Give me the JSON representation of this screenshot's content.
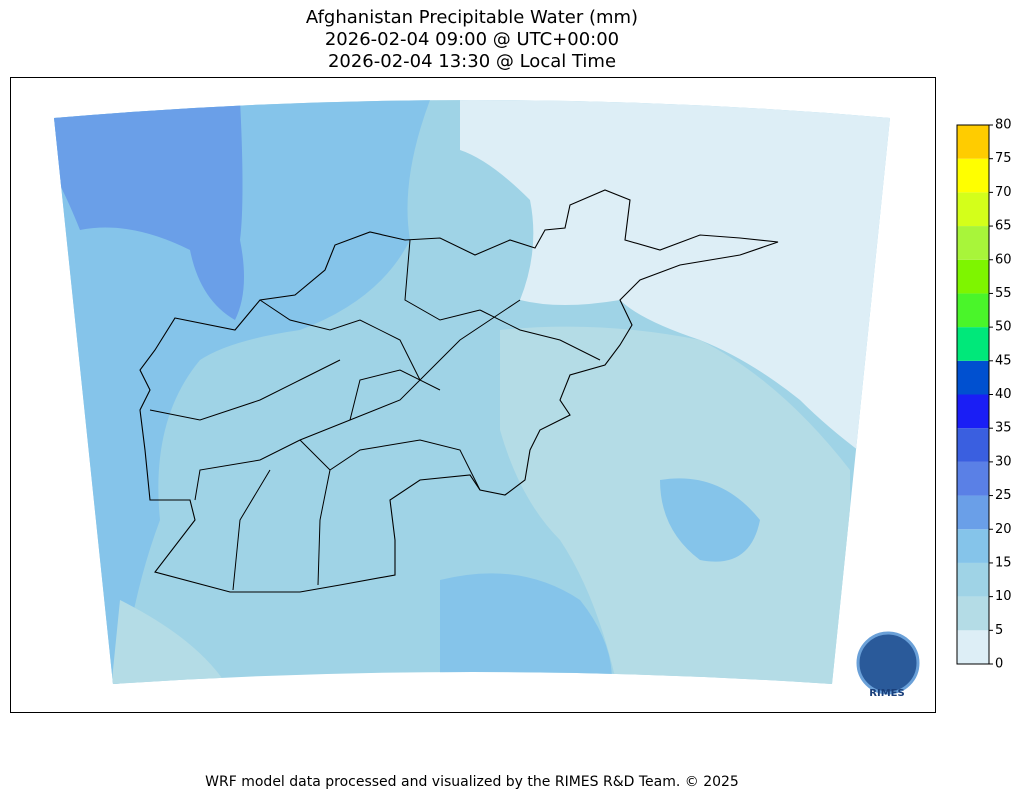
{
  "header": {
    "title": [
      "Afghanistan Precipitable Water (mm)",
      "2026-02-04 09:00 @ UTC+00:00",
      "2026-02-04 13:30 @ Local Time"
    ]
  },
  "colorbar": {
    "ticks": [
      0,
      5,
      10,
      15,
      20,
      25,
      30,
      35,
      40,
      45,
      50,
      55,
      60,
      65,
      70,
      75,
      80
    ],
    "colors": [
      "#ddeef6",
      "#b4dce6",
      "#9fd3e6",
      "#85c4ea",
      "#6a9fe8",
      "#5a80e6",
      "#3a5fe0",
      "#1a1ef5",
      "#0050d0",
      "#00e87a",
      "#4af52a",
      "#7ef500",
      "#a8f53a",
      "#d4ff1a",
      "#ffff00",
      "#ffcc00"
    ]
  },
  "logo": "RIMES",
  "footer": "WRF model data processed and visualized by the RIMES R&D Team. © 2025"
}
